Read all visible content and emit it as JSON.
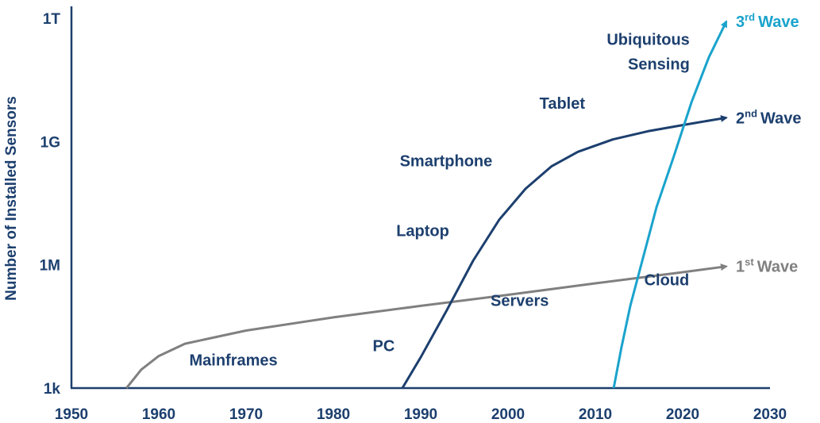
{
  "chart_data": {
    "type": "line",
    "title": "",
    "xlabel": "",
    "ylabel": "Number of Installed Sensors",
    "xlim": [
      1950,
      2030
    ],
    "x_ticks": [
      1950,
      1960,
      1970,
      1980,
      1990,
      2000,
      2010,
      2020,
      2030
    ],
    "y_scale": "log",
    "ylim_exponent": [
      3,
      12
    ],
    "y_ticks": [
      {
        "label": "1k",
        "exponent": 3
      },
      {
        "label": "1M",
        "exponent": 6
      },
      {
        "label": "1G",
        "exponent": 9
      },
      {
        "label": "1T",
        "exponent": 12
      }
    ],
    "grid": false,
    "series": [
      {
        "name": "1st Wave",
        "ord": "1",
        "sup": "st",
        "word": "Wave",
        "color": "#808080",
        "points": [
          [
            1956.3,
            3.0
          ],
          [
            1958,
            3.45
          ],
          [
            1960,
            3.78
          ],
          [
            1963,
            4.08
          ],
          [
            1970,
            4.4
          ],
          [
            1980,
            4.72
          ],
          [
            1990,
            5.0
          ],
          [
            2000,
            5.27
          ],
          [
            2010,
            5.55
          ],
          [
            2020,
            5.82
          ],
          [
            2025,
            5.96
          ]
        ]
      },
      {
        "name": "2nd Wave",
        "ord": "2",
        "sup": "nd",
        "word": "Wave",
        "color": "#1c3f6e",
        "points": [
          [
            1987.9,
            3.0
          ],
          [
            1990,
            3.75
          ],
          [
            1993,
            4.9
          ],
          [
            1996,
            6.1
          ],
          [
            1999,
            7.1
          ],
          [
            2002,
            7.85
          ],
          [
            2005,
            8.4
          ],
          [
            2008,
            8.75
          ],
          [
            2012,
            9.05
          ],
          [
            2016,
            9.25
          ],
          [
            2020,
            9.4
          ],
          [
            2025,
            9.58
          ]
        ]
      },
      {
        "name": "3rd Wave",
        "ord": "3",
        "sup": "rd",
        "word": "Wave",
        "color": "#1aa3cc",
        "points": [
          [
            2012.1,
            3.0
          ],
          [
            2013,
            4.0
          ],
          [
            2014,
            5.0
          ],
          [
            2015.5,
            6.2
          ],
          [
            2017,
            7.4
          ],
          [
            2019,
            8.65
          ],
          [
            2021,
            9.95
          ],
          [
            2023,
            11.05
          ],
          [
            2025,
            11.92
          ]
        ]
      }
    ],
    "annotations": [
      {
        "text": "Mainframes",
        "x": 1963.5,
        "y": 3.55,
        "color": "#1c3f6e",
        "anchor": "start"
      },
      {
        "text": "PC",
        "x": 1984.5,
        "y": 3.9,
        "color": "#1c3f6e",
        "anchor": "start"
      },
      {
        "text": "Laptop",
        "x": 1987.2,
        "y": 6.7,
        "color": "#1c3f6e",
        "anchor": "start"
      },
      {
        "text": "Smartphone",
        "x": 1987.6,
        "y": 8.4,
        "color": "#1c3f6e",
        "anchor": "start"
      },
      {
        "text": "Tablet",
        "x": 2003.6,
        "y": 9.8,
        "color": "#1c3f6e",
        "anchor": "start"
      },
      {
        "text": "Servers",
        "x": 1998,
        "y": 5.0,
        "color": "#1c3f6e",
        "anchor": "start"
      },
      {
        "text": "Cloud",
        "x": 2015.6,
        "y": 5.5,
        "color": "#1c3f6e",
        "anchor": "start"
      },
      {
        "text": "Ubiquitous",
        "x": 2020.8,
        "y": 11.35,
        "color": "#1c3f6e",
        "anchor": "end"
      },
      {
        "text": "Sensing",
        "x": 2020.8,
        "y": 10.75,
        "color": "#1c3f6e",
        "anchor": "end"
      }
    ]
  }
}
